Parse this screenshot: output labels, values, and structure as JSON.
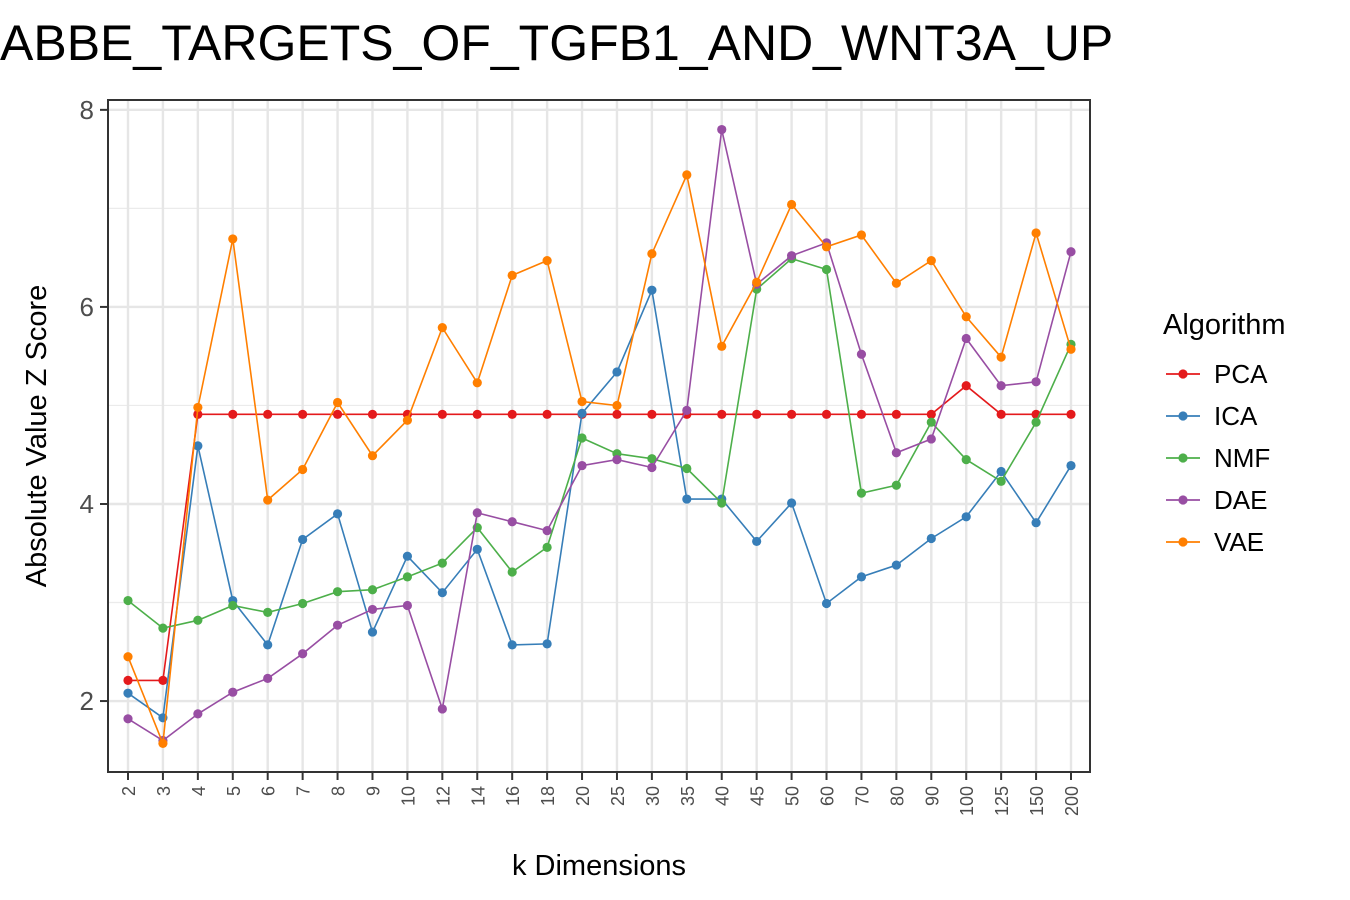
{
  "chart_data": {
    "type": "line",
    "title": "ABBE_TARGETS_OF_TGFB1_AND_WNT3A_UP",
    "xlabel": "k Dimensions",
    "ylabel": "Absolute Value Z Score",
    "categories": [
      "2",
      "3",
      "4",
      "5",
      "6",
      "7",
      "8",
      "9",
      "10",
      "12",
      "14",
      "16",
      "18",
      "20",
      "25",
      "30",
      "35",
      "40",
      "45",
      "50",
      "60",
      "70",
      "80",
      "90",
      "100",
      "125",
      "150",
      "200"
    ],
    "ylim": [
      1.28,
      8.1
    ],
    "yticks": [
      2,
      4,
      6,
      8
    ],
    "grid": true,
    "legend": {
      "title": "Algorithm",
      "position": "right"
    },
    "series": [
      {
        "name": "PCA",
        "color": "#e41a1c",
        "values": [
          2.21,
          2.21,
          4.91,
          4.91,
          4.91,
          4.91,
          4.91,
          4.91,
          4.91,
          4.91,
          4.91,
          4.91,
          4.91,
          4.91,
          4.91,
          4.91,
          4.91,
          4.91,
          4.91,
          4.91,
          4.91,
          4.91,
          4.91,
          4.91,
          5.2,
          4.91,
          4.91,
          4.91
        ]
      },
      {
        "name": "ICA",
        "color": "#377eb8",
        "values": [
          2.08,
          1.83,
          4.59,
          3.02,
          2.57,
          3.64,
          3.9,
          2.7,
          3.47,
          3.1,
          3.54,
          2.57,
          2.58,
          4.92,
          5.34,
          6.17,
          4.05,
          4.05,
          3.62,
          4.01,
          2.99,
          3.26,
          3.38,
          3.65,
          3.87,
          4.33,
          3.81,
          4.39
        ]
      },
      {
        "name": "NMF",
        "color": "#4daf4a",
        "values": [
          3.02,
          2.74,
          2.82,
          2.97,
          2.9,
          2.99,
          3.11,
          3.13,
          3.26,
          3.4,
          3.76,
          3.31,
          3.56,
          4.67,
          4.51,
          4.46,
          4.36,
          4.01,
          6.18,
          6.49,
          6.38,
          4.11,
          4.19,
          4.83,
          4.45,
          4.23,
          4.83,
          5.62
        ]
      },
      {
        "name": "DAE",
        "color": "#984ea3",
        "values": [
          1.82,
          1.6,
          1.87,
          2.09,
          2.23,
          2.48,
          2.77,
          2.93,
          2.97,
          1.92,
          3.91,
          3.82,
          3.73,
          4.39,
          4.45,
          4.37,
          4.95,
          7.8,
          6.23,
          6.52,
          6.65,
          5.52,
          4.52,
          4.66,
          5.68,
          5.2,
          5.24,
          6.56
        ]
      },
      {
        "name": "VAE",
        "color": "#ff7f00",
        "values": [
          2.45,
          1.57,
          4.98,
          6.69,
          4.04,
          4.35,
          5.03,
          4.49,
          4.85,
          5.79,
          5.23,
          6.32,
          6.47,
          5.04,
          5.0,
          6.54,
          7.34,
          5.6,
          6.25,
          7.04,
          6.61,
          6.73,
          6.24,
          6.47,
          5.9,
          5.49,
          6.75,
          5.57
        ]
      }
    ]
  }
}
